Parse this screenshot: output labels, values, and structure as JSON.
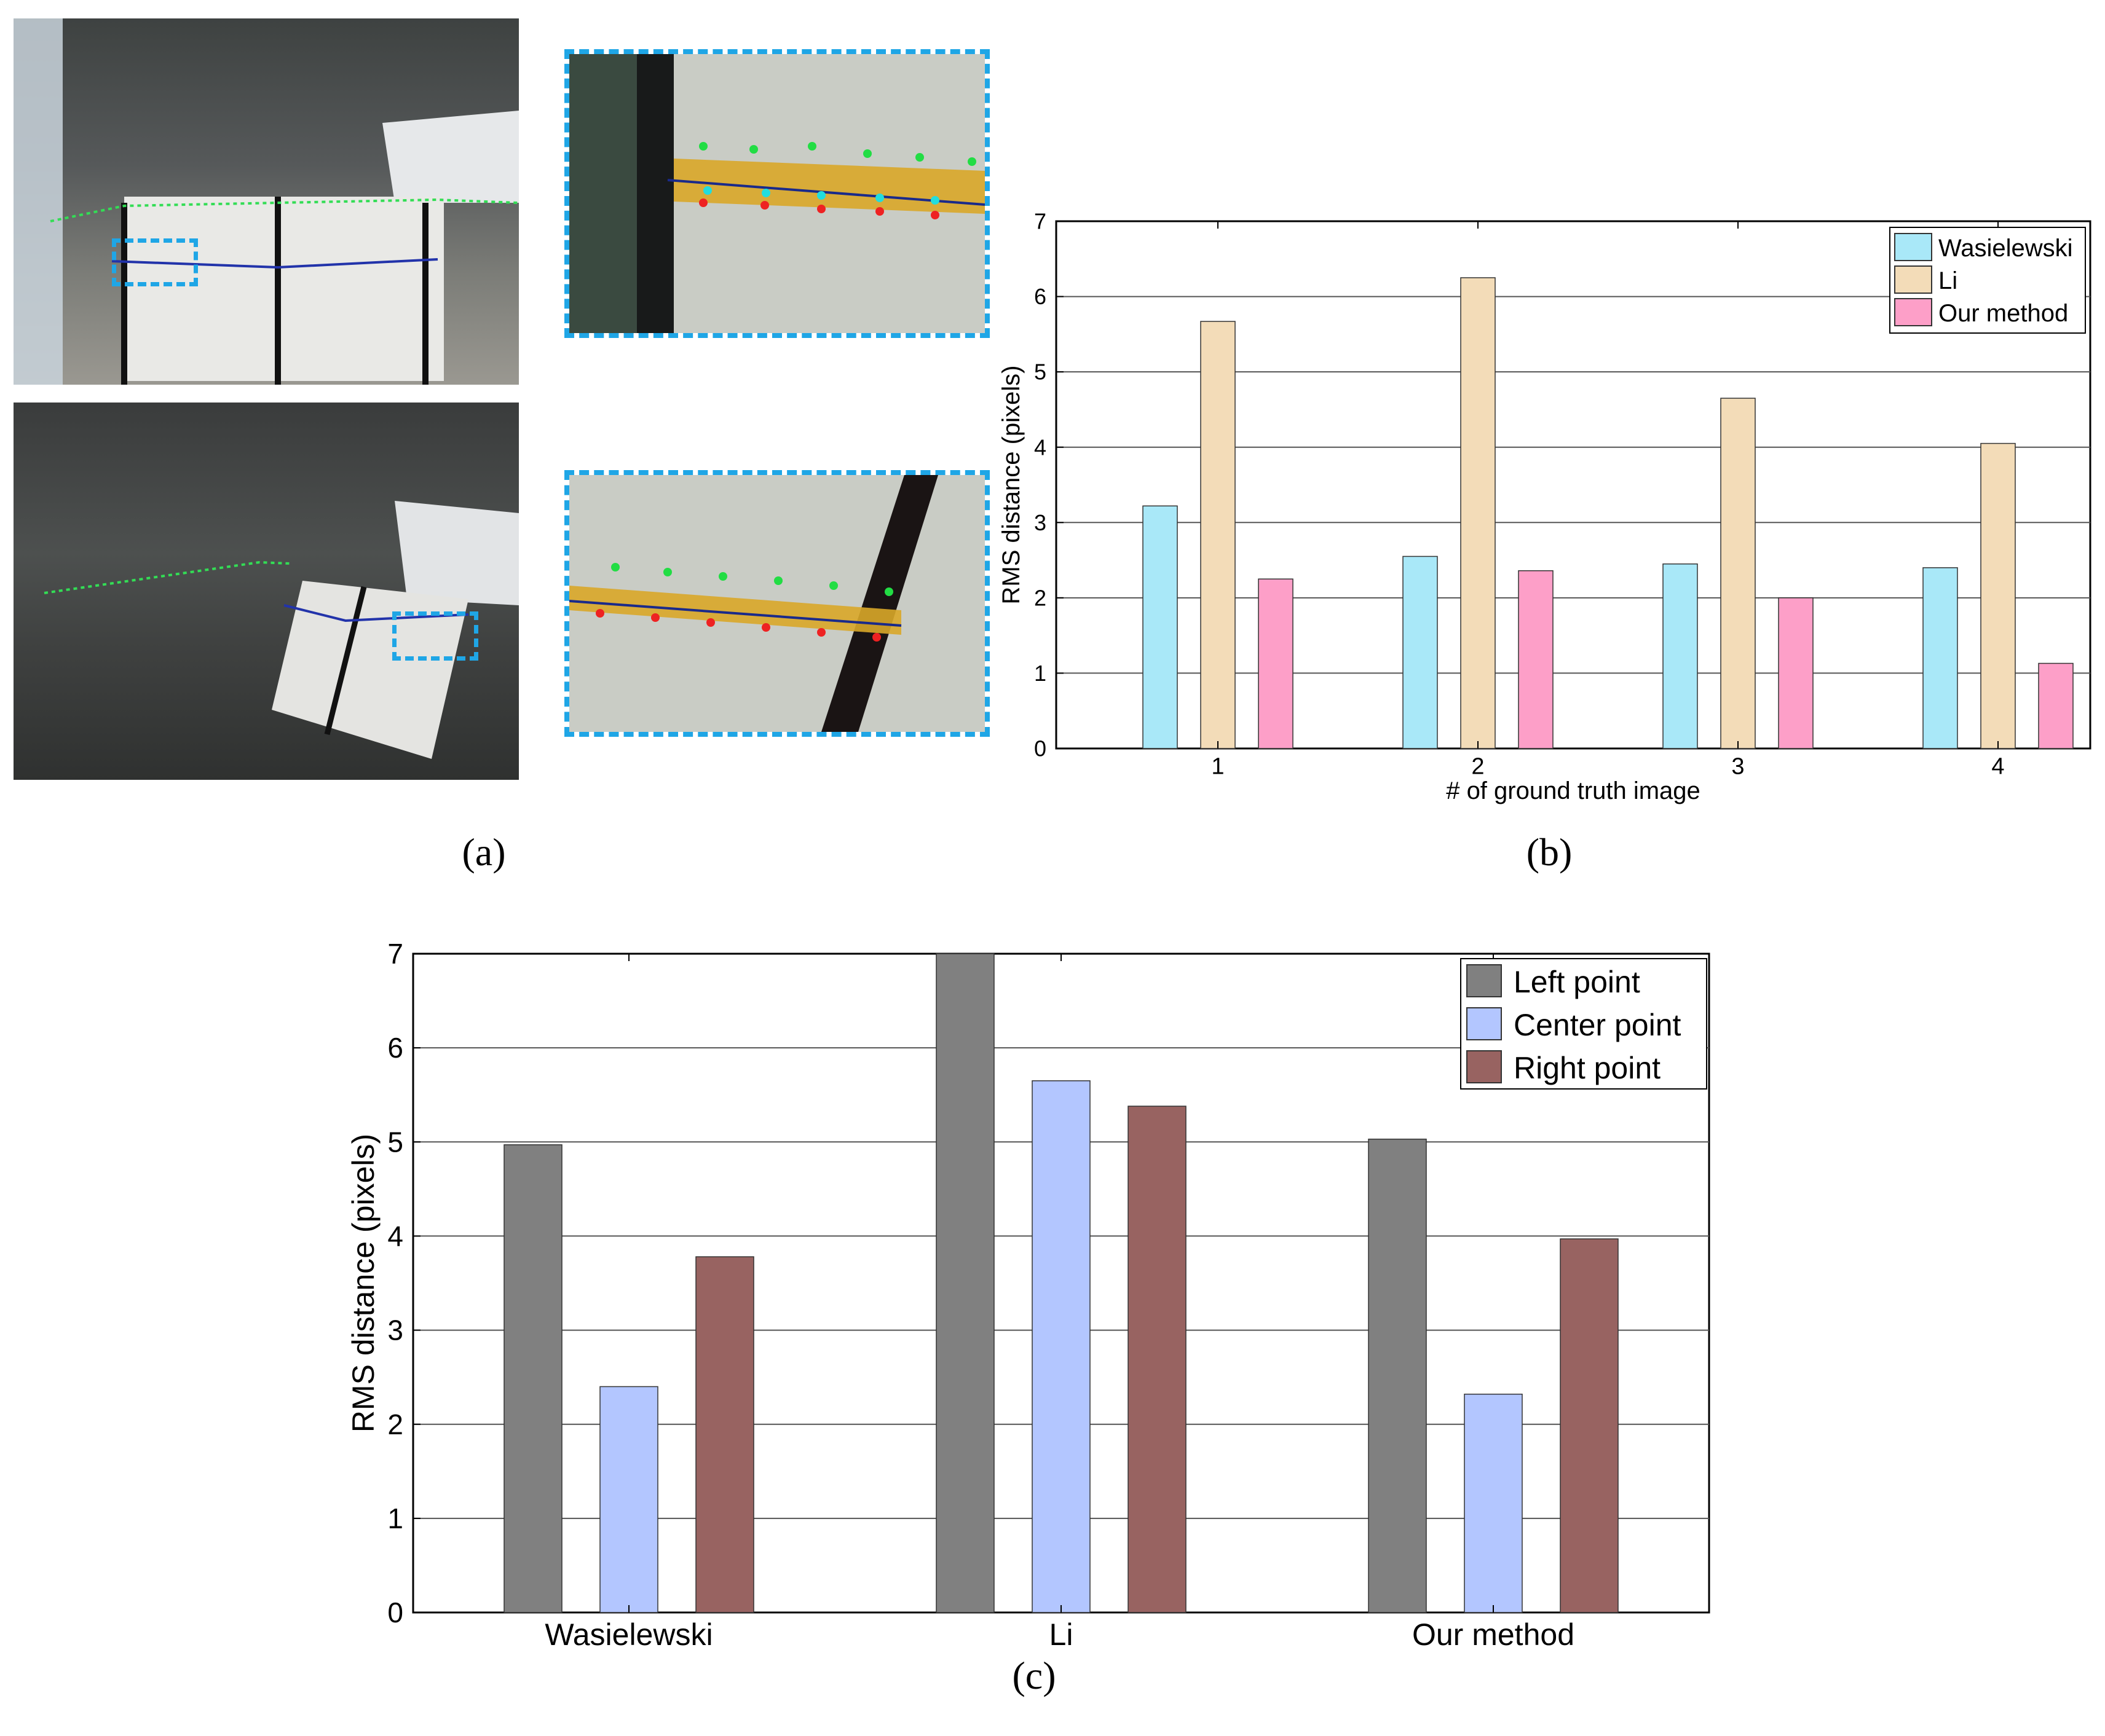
{
  "panel_labels": {
    "a": "(a)",
    "b": "(b)",
    "c": "(c)"
  },
  "colors": {
    "wasielewski": "#a9e8f8",
    "li": "#f3dcb8",
    "our_method": "#fd9fc8",
    "left_point": "#808080",
    "center_point": "#b3c6ff",
    "right_point": "#986361",
    "highlight_box": "#1fa6e6"
  },
  "chart_data": [
    {
      "type": "bar",
      "panel": "b",
      "categories": [
        "1",
        "2",
        "3",
        "4"
      ],
      "series": [
        {
          "name": "Wasielewski",
          "values": [
            3.22,
            2.55,
            2.45,
            2.4
          ]
        },
        {
          "name": "Li",
          "values": [
            5.67,
            6.25,
            4.65,
            4.05
          ]
        },
        {
          "name": "Our method",
          "values": [
            2.25,
            2.36,
            2.0,
            1.13
          ]
        }
      ],
      "title": "",
      "xlabel": "# of ground truth image",
      "ylabel": "RMS distance (pixels)",
      "ylim": [
        0,
        7
      ],
      "yticks": [
        "0",
        "1",
        "2",
        "3",
        "4",
        "5",
        "6",
        "7"
      ],
      "grid": true,
      "legend": "top-right"
    },
    {
      "type": "bar",
      "panel": "c",
      "categories": [
        "Wasielewski",
        "Li",
        "Our method"
      ],
      "series": [
        {
          "name": "Left point",
          "values": [
            4.97,
            7.0,
            5.03
          ]
        },
        {
          "name": "Center point",
          "values": [
            2.4,
            5.65,
            2.32
          ]
        },
        {
          "name": "Right point",
          "values": [
            3.78,
            5.38,
            3.97
          ]
        }
      ],
      "title": "",
      "xlabel": "",
      "ylabel": "RMS distance (pixels)",
      "ylim": [
        0,
        7
      ],
      "yticks": [
        "0",
        "1",
        "2",
        "3",
        "4",
        "5",
        "6",
        "7"
      ],
      "grid": true,
      "legend": "top-right"
    }
  ]
}
